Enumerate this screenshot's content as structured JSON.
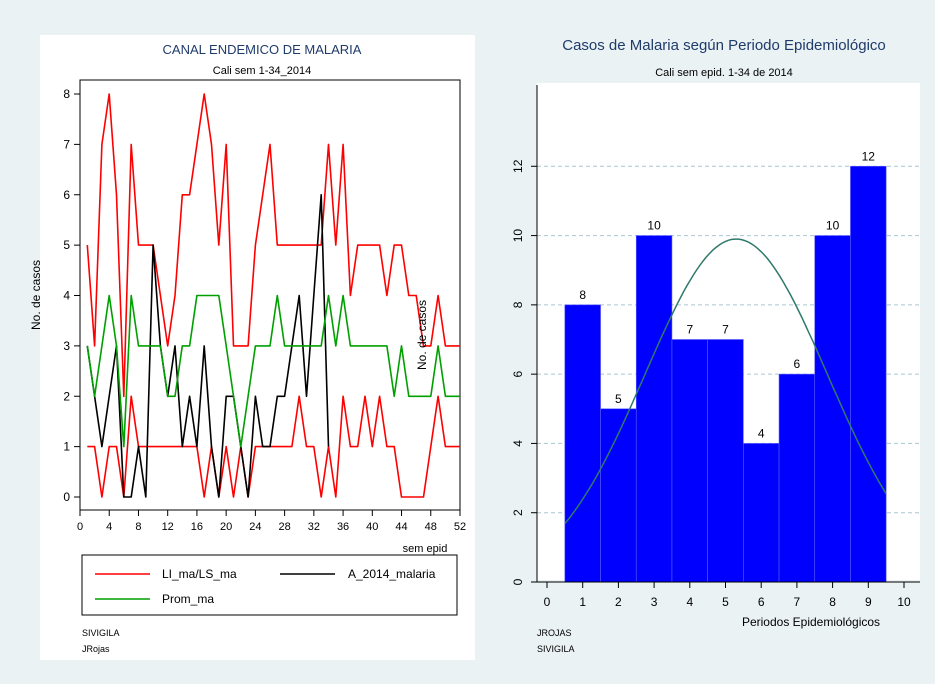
{
  "chart_data": [
    {
      "type": "line",
      "title": "CANAL ENDEMICO DE MALARIA",
      "subtitle": "Cali sem 1-34_2014",
      "xlabel": "sem epid",
      "ylabel": "No. de casos",
      "xlim": [
        0,
        52
      ],
      "ylim": [
        0,
        8
      ],
      "xticks": [
        "0",
        "4",
        "8",
        "12",
        "16",
        "20",
        "24",
        "28",
        "32",
        "36",
        "40",
        "44",
        "48",
        "52"
      ],
      "yticks": [
        "0",
        "1",
        "2",
        "3",
        "4",
        "5",
        "6",
        "7",
        "8"
      ],
      "grid": false,
      "legend_position": "bottom",
      "series": [
        {
          "name": "LI_ma/LS_ma",
          "color": "#ff0000",
          "x": [
            1,
            2,
            3,
            4,
            5,
            6,
            7,
            8,
            9,
            10,
            11,
            12,
            13,
            14,
            15,
            16,
            17,
            18,
            19,
            20,
            21,
            22,
            23,
            24,
            25,
            26,
            27,
            28,
            29,
            30,
            31,
            32,
            33,
            34,
            35,
            36,
            37,
            38,
            39,
            40,
            41,
            42,
            43,
            44,
            45,
            46,
            47,
            48,
            49,
            50,
            51,
            52
          ],
          "values": [
            5,
            3,
            7,
            8,
            6,
            2,
            7,
            5,
            5,
            5,
            4,
            3,
            4,
            6,
            6,
            7,
            8,
            7,
            5,
            7,
            3,
            3,
            3,
            5,
            6,
            7,
            5,
            5,
            5,
            5,
            5,
            5,
            5,
            7,
            5,
            7,
            4,
            5,
            5,
            5,
            5,
            4,
            5,
            5,
            4,
            4,
            3,
            3,
            4,
            3,
            3,
            3
          ]
        },
        {
          "name": "LI_ma/LS_ma",
          "color": "#ff0000",
          "x": [
            1,
            2,
            3,
            4,
            5,
            6,
            7,
            8,
            9,
            10,
            11,
            12,
            13,
            14,
            15,
            16,
            17,
            18,
            19,
            20,
            21,
            22,
            23,
            24,
            25,
            26,
            27,
            28,
            29,
            30,
            31,
            32,
            33,
            34,
            35,
            36,
            37,
            38,
            39,
            40,
            41,
            42,
            43,
            44,
            45,
            46,
            47,
            48,
            49,
            50,
            51,
            52
          ],
          "values": [
            1,
            1,
            0,
            1,
            1,
            0,
            2,
            1,
            1,
            1,
            1,
            1,
            1,
            1,
            1,
            1,
            0,
            1,
            0,
            1,
            0,
            1,
            0,
            1,
            1,
            1,
            1,
            1,
            1,
            2,
            1,
            1,
            0,
            1,
            0,
            2,
            1,
            1,
            2,
            1,
            2,
            1,
            1,
            0,
            0,
            0,
            0,
            1,
            2,
            1,
            1,
            1
          ]
        },
        {
          "name": "A_2014_malaria",
          "color": "#000000",
          "x": [
            1,
            2,
            3,
            4,
            5,
            6,
            7,
            8,
            9,
            10,
            11,
            12,
            13,
            14,
            15,
            16,
            17,
            18,
            19,
            20,
            21,
            22,
            23,
            24,
            25,
            26,
            27,
            28,
            29,
            30,
            31,
            32,
            33,
            34
          ],
          "values": [
            3,
            2,
            1,
            2,
            3,
            0,
            0,
            1,
            0,
            5,
            3,
            2,
            3,
            1,
            2,
            1,
            3,
            1,
            0,
            2,
            2,
            1,
            0,
            2,
            1,
            1,
            2,
            2,
            3,
            4,
            2,
            4,
            6,
            1
          ]
        },
        {
          "name": "Prom_ma",
          "color": "#00a000",
          "x": [
            1,
            2,
            3,
            4,
            5,
            6,
            7,
            8,
            9,
            10,
            11,
            12,
            13,
            14,
            15,
            16,
            17,
            18,
            19,
            20,
            21,
            22,
            23,
            24,
            25,
            26,
            27,
            28,
            29,
            30,
            31,
            32,
            33,
            34,
            35,
            36,
            37,
            38,
            39,
            40,
            41,
            42,
            43,
            44,
            45,
            46,
            47,
            48,
            49,
            50,
            51,
            52
          ],
          "values": [
            3,
            2,
            3,
            4,
            3,
            1,
            4,
            3,
            3,
            3,
            3,
            2,
            2,
            3,
            3,
            4,
            4,
            4,
            4,
            3,
            2,
            1,
            2,
            3,
            3,
            3,
            4,
            3,
            3,
            3,
            3,
            3,
            3,
            4,
            3,
            4,
            3,
            3,
            3,
            3,
            3,
            3,
            2,
            3,
            2,
            2,
            2,
            2,
            3,
            2,
            2,
            2
          ]
        }
      ],
      "legend": [
        "LI_ma/LS_ma",
        "A_2014_malaria",
        "Prom_ma"
      ],
      "notes": [
        "SIVIGILA",
        "JRojas"
      ]
    },
    {
      "type": "bar",
      "title": "Casos de Malaria según Periodo Epidemiológico",
      "subtitle": "Cali sem epid. 1-34 de 2014",
      "xlabel": "Periodos Epidemiológicos",
      "ylabel": "No. de casos",
      "categories": [
        "1",
        "2",
        "3",
        "4",
        "5",
        "6",
        "7",
        "8",
        "9"
      ],
      "values": [
        8,
        5,
        10,
        7,
        7,
        4,
        6,
        10,
        12
      ],
      "data_labels": [
        "8",
        "5",
        "10",
        "7",
        "7",
        "4",
        "6",
        "10",
        "12"
      ],
      "xlim": [
        0,
        10
      ],
      "ylim": [
        0,
        14
      ],
      "xticks": [
        "0",
        "1",
        "2",
        "3",
        "4",
        "5",
        "6",
        "7",
        "8",
        "9",
        "10"
      ],
      "yticks": [
        "0",
        "2",
        "4",
        "6",
        "8",
        "10",
        "12"
      ],
      "grid": true,
      "bar_color": "#0000ff",
      "curve_color": "#2f7a6b",
      "normal_curve": {
        "mean": 5.3,
        "peak": 9.9,
        "sd": 2.55
      },
      "notes": [
        "JROJAS",
        "SIVIGILA"
      ]
    }
  ]
}
